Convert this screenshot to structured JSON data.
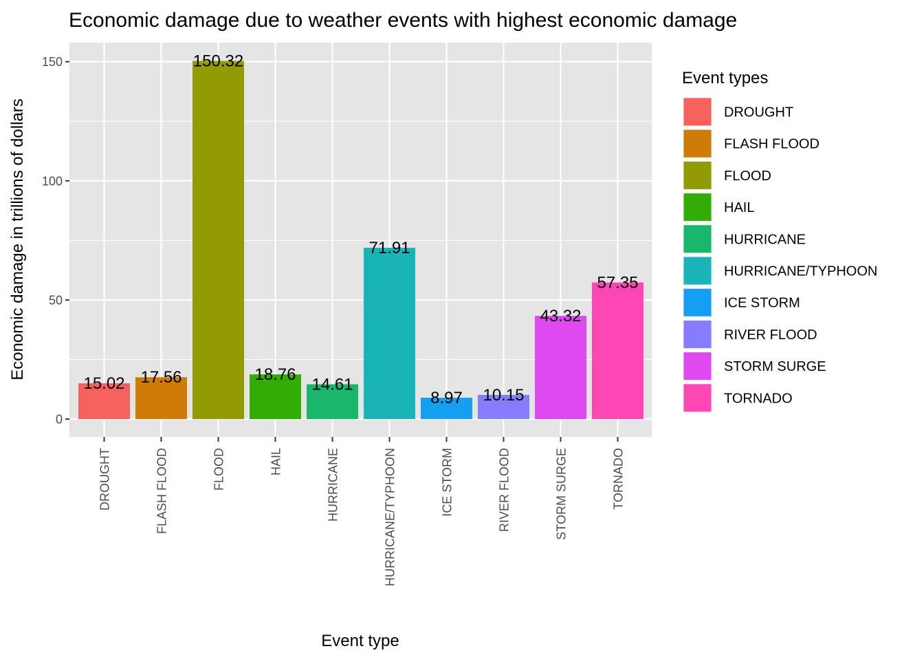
{
  "chart_data": {
    "type": "bar",
    "title": "Economic damage due to weather events with highest economic damage",
    "xlabel": "Event type",
    "ylabel": "Economic damage in trillions of dollars",
    "categories": [
      "DROUGHT",
      "FLASH FLOOD",
      "FLOOD",
      "HAIL",
      "HURRICANE",
      "HURRICANE/TYPHOON",
      "ICE STORM",
      "RIVER FLOOD",
      "STORM SURGE",
      "TORNADO"
    ],
    "values": [
      15.02,
      17.56,
      150.32,
      18.76,
      14.61,
      71.91,
      8.97,
      10.15,
      43.32,
      57.35
    ],
    "value_labels": [
      "15.02",
      "17.56",
      "150.32",
      "18.76",
      "14.61",
      "71.91",
      "8.97",
      "10.15",
      "43.32",
      "57.35"
    ],
    "colors": [
      "#F8766D",
      "#D39200",
      "#93AA00",
      "#00BA38",
      "#00C19F",
      "#00B9E3",
      "#00A5FF",
      "#9590FF",
      "#DB72FB",
      "#FF61C3"
    ],
    "bar_colors": [
      "#F5625E",
      "#CF7C07",
      "#929A04",
      "#33AC05",
      "#19B76B",
      "#19B4B8",
      "#149FF3",
      "#857CFE",
      "#DE4AF0",
      "#FC47B4"
    ],
    "ylim": [
      -7.5,
      158
    ],
    "yticks": [
      0,
      50,
      100,
      150
    ],
    "ytick_labels": [
      "0",
      "50",
      "100",
      "150"
    ],
    "grid": true,
    "legend": {
      "title": "Event types",
      "placement": "right",
      "entries": [
        "DROUGHT",
        "FLASH FLOOD",
        "FLOOD",
        "HAIL",
        "HURRICANE",
        "HURRICANE/TYPHOON",
        "ICE STORM",
        "RIVER FLOOD",
        "STORM SURGE",
        "TORNADO"
      ]
    },
    "panel_background": "#E5E5E5",
    "grid_color": "#FFFFFF"
  }
}
